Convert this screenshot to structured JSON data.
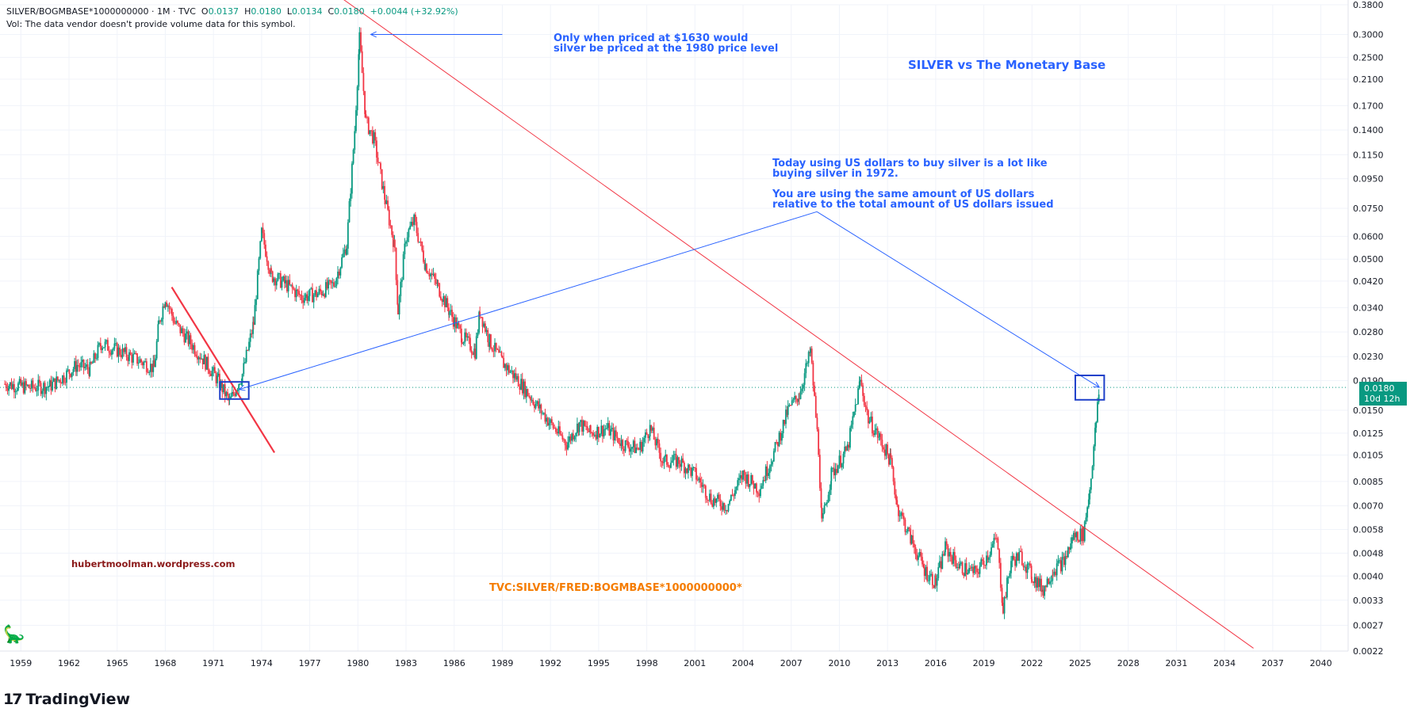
{
  "header": {
    "symbol": "SILVER/BOGMBASE*1000000000 · 1M · TVC",
    "o_label": "O",
    "o_value": "0.0137",
    "h_label": "H",
    "h_value": "0.0180",
    "l_label": "L",
    "l_value": "0.0134",
    "c_label": "C",
    "c_value": "0.0180",
    "change": "+0.0044 (+32.92%)",
    "volume_note": "Vol: The data vendor doesn't provide volume data for this symbol."
  },
  "annotations": {
    "peak_note_1": "Only when priced at $1630 would",
    "peak_note_2": "silver be priced at the 1980 price level",
    "chart_title": "SILVER vs The Monetary Base",
    "today_note_1": "Today using US dollars to buy silver is a lot like",
    "today_note_2": "buying silver in 1972.",
    "today_note_3": "You are using the same amount of  US dollars",
    "today_note_4": "relative to the total amount of US dollars issued",
    "website": "hubertmoolman.wordpress.com",
    "formula": "TVC:SILVER/FRED:BOGMBASE*1000000000*"
  },
  "price_tag": {
    "price": "0.0180",
    "countdown": "10d 12h"
  },
  "brand": {
    "logo": "17",
    "name": "TradingView"
  },
  "colors": {
    "up": "#089981",
    "down": "#f23645",
    "trendline": "#f23645",
    "annotation": "#2962ff",
    "grid": "#f0f3fa"
  },
  "chart_data": {
    "type": "candlestick",
    "title": "SILVER vs The Monetary Base",
    "x_label": "",
    "y_label": "",
    "y_scale": "log",
    "y_ticks": [
      0.0022,
      0.0027,
      0.0033,
      0.004,
      0.0048,
      0.0058,
      0.007,
      0.0085,
      0.0105,
      0.0125,
      0.015,
      0.019,
      0.023,
      0.028,
      0.034,
      0.042,
      0.05,
      0.06,
      0.075,
      0.095,
      0.115,
      0.14,
      0.17,
      0.21,
      0.25,
      0.3,
      0.38
    ],
    "y_tick_labels": [
      "0.0022",
      "0.0027",
      "0.0033",
      "0.0040",
      "0.0048",
      "0.0058",
      "0.0070",
      "0.0085",
      "0.0105",
      "0.0125",
      "0.0150",
      "0.0190",
      "0.0230",
      "0.0280",
      "0.0340",
      "0.0420",
      "0.0500",
      "0.0600",
      "0.0750",
      "0.0950",
      "0.1150",
      "0.1400",
      "0.1700",
      "0.2100",
      "0.2500",
      "0.3000",
      "0.3800"
    ],
    "x_ticks": [
      1959,
      1962,
      1965,
      1968,
      1971,
      1974,
      1977,
      1980,
      1983,
      1986,
      1989,
      1992,
      1995,
      1998,
      2001,
      2004,
      2007,
      2010,
      2013,
      2016,
      2019,
      2022,
      2025,
      2028,
      2031,
      2034,
      2037,
      2040
    ],
    "x_range": [
      1957.7,
      2041.7
    ],
    "last_price": 0.018,
    "series": [
      {
        "name": "",
        "points": [
          [
            1958.0,
            0.0185
          ],
          [
            1959.5,
            0.018
          ],
          [
            1960.8,
            0.0182
          ],
          [
            1961.6,
            0.0195
          ],
          [
            1962.5,
            0.0215
          ],
          [
            1963.3,
            0.0208
          ],
          [
            1964.0,
            0.0255
          ],
          [
            1965.0,
            0.0242
          ],
          [
            1966.0,
            0.0228
          ],
          [
            1967.3,
            0.021
          ],
          [
            1967.6,
            0.03
          ],
          [
            1968.0,
            0.037
          ],
          [
            1968.6,
            0.03
          ],
          [
            1969.5,
            0.026
          ],
          [
            1970.5,
            0.022
          ],
          [
            1971.3,
            0.019
          ],
          [
            1972.0,
            0.016
          ],
          [
            1972.8,
            0.02
          ],
          [
            1973.5,
            0.03
          ],
          [
            1974.0,
            0.062
          ],
          [
            1974.6,
            0.044
          ],
          [
            1975.5,
            0.041
          ],
          [
            1976.5,
            0.037
          ],
          [
            1977.5,
            0.038
          ],
          [
            1978.5,
            0.041
          ],
          [
            1979.3,
            0.056
          ],
          [
            1979.8,
            0.14
          ],
          [
            1980.1,
            0.29
          ],
          [
            1980.5,
            0.15
          ],
          [
            1981.0,
            0.13
          ],
          [
            1981.7,
            0.08
          ],
          [
            1982.3,
            0.055
          ],
          [
            1982.5,
            0.033
          ],
          [
            1983.0,
            0.06
          ],
          [
            1983.5,
            0.068
          ],
          [
            1984.2,
            0.048
          ],
          [
            1985.0,
            0.04
          ],
          [
            1985.7,
            0.033
          ],
          [
            1986.5,
            0.027
          ],
          [
            1987.3,
            0.024
          ],
          [
            1987.6,
            0.033
          ],
          [
            1988.2,
            0.026
          ],
          [
            1989.0,
            0.022
          ],
          [
            1990.0,
            0.019
          ],
          [
            1991.0,
            0.016
          ],
          [
            1992.0,
            0.0135
          ],
          [
            1993.0,
            0.0115
          ],
          [
            1993.8,
            0.0135
          ],
          [
            1994.5,
            0.0125
          ],
          [
            1995.5,
            0.013
          ],
          [
            1996.5,
            0.0115
          ],
          [
            1997.5,
            0.011
          ],
          [
            1998.2,
            0.013
          ],
          [
            1999.0,
            0.01
          ],
          [
            2000.0,
            0.01
          ],
          [
            2001.0,
            0.009
          ],
          [
            2002.0,
            0.0074
          ],
          [
            2003.0,
            0.007
          ],
          [
            2004.0,
            0.009
          ],
          [
            2005.0,
            0.008
          ],
          [
            2006.0,
            0.011
          ],
          [
            2006.8,
            0.015
          ],
          [
            2007.5,
            0.017
          ],
          [
            2008.2,
            0.024
          ],
          [
            2008.7,
            0.011
          ],
          [
            2008.9,
            0.006
          ],
          [
            2009.5,
            0.009
          ],
          [
            2010.5,
            0.011
          ],
          [
            2011.3,
            0.019
          ],
          [
            2011.8,
            0.014
          ],
          [
            2012.5,
            0.012
          ],
          [
            2013.2,
            0.01
          ],
          [
            2013.6,
            0.007
          ],
          [
            2014.5,
            0.0053
          ],
          [
            2015.3,
            0.0042
          ],
          [
            2016.0,
            0.0038
          ],
          [
            2016.6,
            0.005
          ],
          [
            2017.5,
            0.0043
          ],
          [
            2018.5,
            0.0041
          ],
          [
            2019.3,
            0.0048
          ],
          [
            2019.8,
            0.0054
          ],
          [
            2020.2,
            0.0031
          ],
          [
            2020.7,
            0.0045
          ],
          [
            2021.3,
            0.0047
          ],
          [
            2022.0,
            0.004
          ],
          [
            2022.7,
            0.0036
          ],
          [
            2023.3,
            0.0042
          ],
          [
            2024.0,
            0.0045
          ],
          [
            2024.6,
            0.0055
          ],
          [
            2025.2,
            0.0056
          ],
          [
            2025.6,
            0.008
          ],
          [
            2026.0,
            0.0137
          ],
          [
            2026.2,
            0.018
          ]
        ]
      }
    ],
    "trendlines": [
      {
        "name": "",
        "from": [
          1979.0,
          0.4
        ],
        "to": [
          2035.8,
          0.00225
        ]
      },
      {
        "name": "",
        "from": [
          1968.4,
          0.04
        ],
        "to": [
          1974.8,
          0.0107
        ]
      }
    ],
    "arrows": [
      {
        "from": [
          1989.0,
          0.3
        ],
        "to": [
          1980.8,
          0.3
        ]
      },
      {
        "from": [
          2008.6,
          0.073
        ],
        "to": [
          1972.6,
          0.0177
        ]
      },
      {
        "from": [
          2008.6,
          0.073
        ],
        "to": [
          2026.2,
          0.018
        ]
      }
    ],
    "boxes": [
      {
        "x": [
          1971.4,
          1973.2
        ],
        "y": [
          0.0164,
          0.0188
        ]
      },
      {
        "x": [
          2024.7,
          2026.5
        ],
        "y": [
          0.0163,
          0.0198
        ]
      }
    ]
  }
}
